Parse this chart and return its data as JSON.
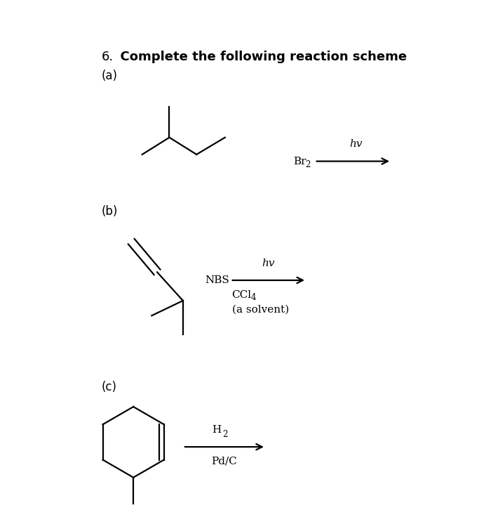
{
  "title_num": "6.",
  "title_text": "  Complete the following reaction scheme",
  "label_a": "(a)",
  "label_b": "(b)",
  "label_c": "(c)",
  "bg_color": "#ffffff",
  "text_color": "#000000",
  "title_fontsize": 13,
  "label_fontsize": 12,
  "chem_fontsize": 11,
  "sub_fontsize": 8.5,
  "lw": 1.6
}
